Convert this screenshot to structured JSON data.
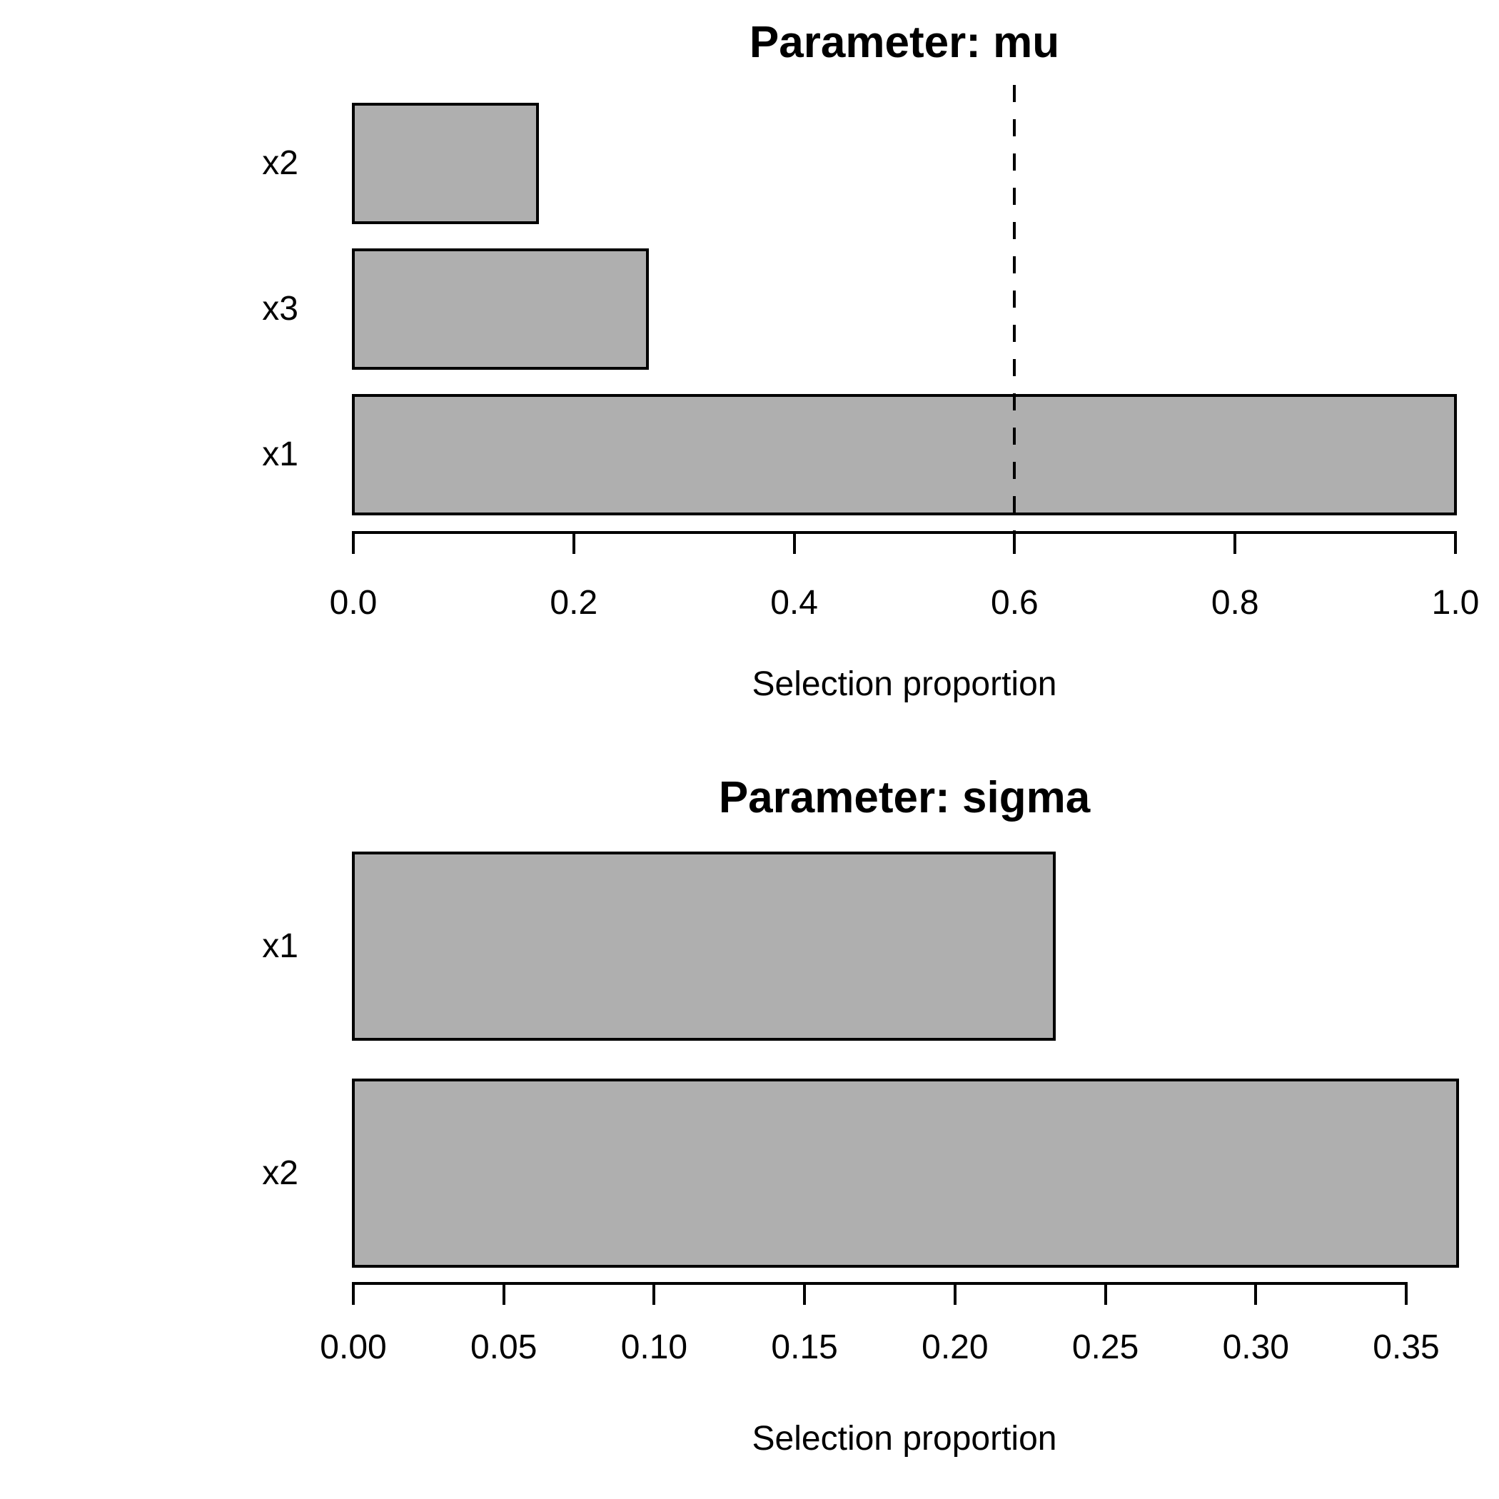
{
  "figure": {
    "background": "#FFFFFF",
    "bar_fill": "#AFAFAF",
    "bar_border": "#000000",
    "text_color": "#000000"
  },
  "chart_data": [
    {
      "id": "mu",
      "type": "bar",
      "orientation": "horizontal",
      "title": "Parameter: mu",
      "xlabel": "Selection proportion",
      "categories": [
        "x2",
        "x3",
        "x1"
      ],
      "values": [
        0.167,
        0.267,
        1.0
      ],
      "xlim": [
        0,
        1.0
      ],
      "xticks": [
        0,
        0.2,
        0.4,
        0.6,
        0.8,
        1.0
      ],
      "xtick_labels": [
        "0.0",
        "0.2",
        "0.4",
        "0.6",
        "0.8",
        "1.0"
      ],
      "reference_line": {
        "value": 0.6,
        "style": "dashed",
        "color": "#000000"
      },
      "grid": false,
      "legend": "none"
    },
    {
      "id": "sigma",
      "type": "bar",
      "orientation": "horizontal",
      "title": "Parameter: sigma",
      "xlabel": "Selection proportion",
      "categories": [
        "x1",
        "x2"
      ],
      "values": [
        0.233,
        0.367
      ],
      "xlim": [
        0,
        0.367
      ],
      "xticks": [
        0,
        0.05,
        0.1,
        0.15,
        0.2,
        0.25,
        0.3,
        0.35
      ],
      "xtick_labels": [
        "0.00",
        "0.05",
        "0.10",
        "0.15",
        "0.20",
        "0.25",
        "0.30",
        "0.35"
      ],
      "reference_line": null,
      "grid": false,
      "legend": "none"
    }
  ]
}
